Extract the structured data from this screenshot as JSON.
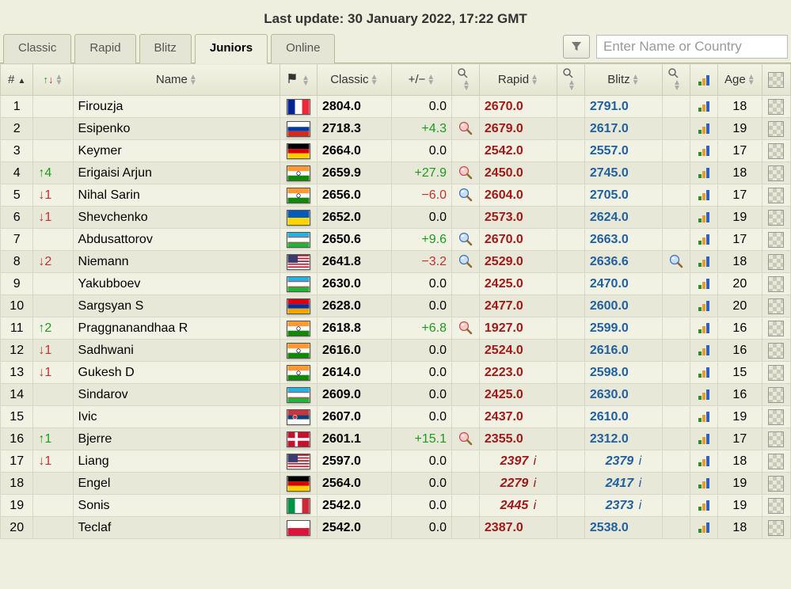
{
  "update_text": "Last update: 30 January 2022, 17:22 GMT",
  "tabs": [
    "Classic",
    "Rapid",
    "Blitz",
    "Juniors",
    "Online"
  ],
  "active_tab_index": 3,
  "search_placeholder": "Enter Name or Country",
  "columns": {
    "rank": "#",
    "name": "Name",
    "classic": "Classic",
    "plusminus": "+/−",
    "rapid": "Rapid",
    "blitz": "Blitz",
    "age": "Age"
  },
  "colors": {
    "bg_odd": "#f2f2e4",
    "bg_even": "#e8e8d8",
    "pos": "#1a9b1a",
    "neg": "#c03030",
    "rapid": "#a01818",
    "blitz": "#2060a0"
  },
  "flags": {
    "FRA": [
      [
        "#002395",
        "0,0,10,20"
      ],
      [
        "#ffffff",
        "10,0,10,20"
      ],
      [
        "#ed2939",
        "20,0,10,20"
      ]
    ],
    "RUS": [
      [
        "#ffffff",
        "0,0,30,7"
      ],
      [
        "#0039a6",
        "0,7,30,6"
      ],
      [
        "#d52b1e",
        "0,13,30,7"
      ]
    ],
    "GER": [
      [
        "#000000",
        "0,0,30,7"
      ],
      [
        "#dd0000",
        "0,7,30,6"
      ],
      [
        "#ffce00",
        "0,13,30,7"
      ]
    ],
    "IND": [
      [
        "#ff9933",
        "0,0,30,7"
      ],
      [
        "#ffffff",
        "0,7,30,6"
      ],
      [
        "#138808",
        "0,13,30,7"
      ]
    ],
    "UKR": [
      [
        "#005bbb",
        "0,0,30,10"
      ],
      [
        "#ffd500",
        "0,10,30,10"
      ]
    ],
    "UZB": [
      [
        "#1eb5e4",
        "0,0,30,6"
      ],
      [
        "#ce1126",
        "0,6,30,1"
      ],
      [
        "#ffffff",
        "0,7,30,6"
      ],
      [
        "#ce1126",
        "0,13,30,1"
      ],
      [
        "#1eb53a",
        "0,14,30,6"
      ]
    ],
    "USA": [
      [
        "#b22234",
        "0,0,30,20"
      ],
      [
        "#ffffff",
        "0,2,30,2"
      ],
      [
        "#ffffff",
        "0,6,30,2"
      ],
      [
        "#ffffff",
        "0,10,30,2"
      ],
      [
        "#ffffff",
        "0,14,30,2"
      ],
      [
        "#ffffff",
        "0,18,30,2"
      ],
      [
        "#3c3b6e",
        "0,0,14,11"
      ]
    ],
    "ARM": [
      [
        "#d90012",
        "0,0,30,7"
      ],
      [
        "#0033a0",
        "0,7,30,6"
      ],
      [
        "#f2a800",
        "0,13,30,7"
      ]
    ],
    "SRB": [
      [
        "#c6363c",
        "0,0,30,7"
      ],
      [
        "#0c4076",
        "0,7,30,6"
      ],
      [
        "#ffffff",
        "0,13,30,7"
      ]
    ],
    "DEN": [
      [
        "#c8102e",
        "0,0,30,20"
      ],
      [
        "#ffffff",
        "0,8,30,4"
      ],
      [
        "#ffffff",
        "10,0,4,20"
      ]
    ],
    "ITA": [
      [
        "#009246",
        "0,0,10,20"
      ],
      [
        "#ffffff",
        "10,0,10,20"
      ],
      [
        "#ce2b37",
        "20,0,10,20"
      ]
    ],
    "POL": [
      [
        "#ffffff",
        "0,0,30,10"
      ],
      [
        "#dc143c",
        "0,10,30,10"
      ]
    ]
  },
  "rows": [
    {
      "rank": 1,
      "move": "",
      "name": "Firouzja",
      "flag": "FRA",
      "classic": "2804.0",
      "pm": "0.0",
      "pm_sign": 0,
      "mag": "",
      "rapid": "2670.0",
      "blitz": "2791.0",
      "blitz_mag": "",
      "age": 18
    },
    {
      "rank": 2,
      "move": "",
      "name": "Esipenko",
      "flag": "RUS",
      "classic": "2718.3",
      "pm": "+4.3",
      "pm_sign": 1,
      "mag": "red",
      "rapid": "2679.0",
      "blitz": "2617.0",
      "blitz_mag": "",
      "age": 19
    },
    {
      "rank": 3,
      "move": "",
      "name": "Keymer",
      "flag": "GER",
      "classic": "2664.0",
      "pm": "0.0",
      "pm_sign": 0,
      "mag": "",
      "rapid": "2542.0",
      "blitz": "2557.0",
      "blitz_mag": "",
      "age": 17
    },
    {
      "rank": 4,
      "move": "↑4",
      "move_dir": "up",
      "name": "Erigaisi Arjun",
      "flag": "IND",
      "classic": "2659.9",
      "pm": "+27.9",
      "pm_sign": 1,
      "mag": "red",
      "rapid": "2450.0",
      "blitz": "2745.0",
      "blitz_mag": "",
      "age": 18
    },
    {
      "rank": 5,
      "move": "↓1",
      "move_dir": "down",
      "name": "Nihal Sarin",
      "flag": "IND",
      "classic": "2656.0",
      "pm": "−6.0",
      "pm_sign": -1,
      "mag": "blue",
      "rapid": "2604.0",
      "blitz": "2705.0",
      "blitz_mag": "",
      "age": 17
    },
    {
      "rank": 6,
      "move": "↓1",
      "move_dir": "down",
      "name": "Shevchenko",
      "flag": "UKR",
      "classic": "2652.0",
      "pm": "0.0",
      "pm_sign": 0,
      "mag": "",
      "rapid": "2573.0",
      "blitz": "2624.0",
      "blitz_mag": "",
      "age": 19
    },
    {
      "rank": 7,
      "move": "",
      "name": "Abdusattorov",
      "flag": "UZB",
      "classic": "2650.6",
      "pm": "+9.6",
      "pm_sign": 1,
      "mag": "blue",
      "rapid": "2670.0",
      "blitz": "2663.0",
      "blitz_mag": "",
      "age": 17
    },
    {
      "rank": 8,
      "move": "↓2",
      "move_dir": "down",
      "name": "Niemann",
      "flag": "USA",
      "classic": "2641.8",
      "pm": "−3.2",
      "pm_sign": -1,
      "mag": "blue",
      "rapid": "2529.0",
      "blitz": "2636.6",
      "blitz_mag": "blue",
      "age": 18
    },
    {
      "rank": 9,
      "move": "",
      "name": "Yakubboev",
      "flag": "UZB",
      "classic": "2630.0",
      "pm": "0.0",
      "pm_sign": 0,
      "mag": "",
      "rapid": "2425.0",
      "blitz": "2470.0",
      "blitz_mag": "",
      "age": 20
    },
    {
      "rank": 10,
      "move": "",
      "name": "Sargsyan S",
      "flag": "ARM",
      "classic": "2628.0",
      "pm": "0.0",
      "pm_sign": 0,
      "mag": "",
      "rapid": "2477.0",
      "blitz": "2600.0",
      "blitz_mag": "",
      "age": 20
    },
    {
      "rank": 11,
      "move": "↑2",
      "move_dir": "up",
      "name": "Praggnanandhaa R",
      "flag": "IND",
      "classic": "2618.8",
      "pm": "+6.8",
      "pm_sign": 1,
      "mag": "red",
      "rapid": "1927.0",
      "blitz": "2599.0",
      "blitz_mag": "",
      "age": 16
    },
    {
      "rank": 12,
      "move": "↓1",
      "move_dir": "down",
      "name": "Sadhwani",
      "flag": "IND",
      "classic": "2616.0",
      "pm": "0.0",
      "pm_sign": 0,
      "mag": "",
      "rapid": "2524.0",
      "blitz": "2616.0",
      "blitz_mag": "",
      "age": 16
    },
    {
      "rank": 13,
      "move": "↓1",
      "move_dir": "down",
      "name": "Gukesh D",
      "flag": "IND",
      "classic": "2614.0",
      "pm": "0.0",
      "pm_sign": 0,
      "mag": "",
      "rapid": "2223.0",
      "blitz": "2598.0",
      "blitz_mag": "",
      "age": 15
    },
    {
      "rank": 14,
      "move": "",
      "name": "Sindarov",
      "flag": "UZB",
      "classic": "2609.0",
      "pm": "0.0",
      "pm_sign": 0,
      "mag": "",
      "rapid": "2425.0",
      "blitz": "2630.0",
      "blitz_mag": "",
      "age": 16
    },
    {
      "rank": 15,
      "move": "",
      "name": "Ivic",
      "flag": "SRB",
      "classic": "2607.0",
      "pm": "0.0",
      "pm_sign": 0,
      "mag": "",
      "rapid": "2437.0",
      "blitz": "2610.0",
      "blitz_mag": "",
      "age": 19
    },
    {
      "rank": 16,
      "move": "↑1",
      "move_dir": "up",
      "name": "Bjerre",
      "flag": "DEN",
      "classic": "2601.1",
      "pm": "+15.1",
      "pm_sign": 1,
      "mag": "red",
      "rapid": "2355.0",
      "blitz": "2312.0",
      "blitz_mag": "",
      "age": 17
    },
    {
      "rank": 17,
      "move": "↓1",
      "move_dir": "down",
      "name": "Liang",
      "flag": "USA",
      "classic": "2597.0",
      "pm": "0.0",
      "pm_sign": 0,
      "mag": "",
      "rapid": "2397",
      "rapid_i": true,
      "blitz": "2379",
      "blitz_i": true,
      "blitz_mag": "",
      "age": 18
    },
    {
      "rank": 18,
      "move": "",
      "name": "Engel",
      "flag": "GER",
      "classic": "2564.0",
      "pm": "0.0",
      "pm_sign": 0,
      "mag": "",
      "rapid": "2279",
      "rapid_i": true,
      "blitz": "2417",
      "blitz_i": true,
      "blitz_mag": "",
      "age": 19
    },
    {
      "rank": 19,
      "move": "",
      "name": "Sonis",
      "flag": "ITA",
      "classic": "2542.0",
      "pm": "0.0",
      "pm_sign": 0,
      "mag": "",
      "rapid": "2445",
      "rapid_i": true,
      "blitz": "2373",
      "blitz_i": true,
      "blitz_mag": "",
      "age": 19
    },
    {
      "rank": 20,
      "move": "",
      "name": "Teclaf",
      "flag": "POL",
      "classic": "2542.0",
      "pm": "0.0",
      "pm_sign": 0,
      "mag": "",
      "rapid": "2387.0",
      "blitz": "2538.0",
      "blitz_mag": "",
      "age": 18
    }
  ]
}
